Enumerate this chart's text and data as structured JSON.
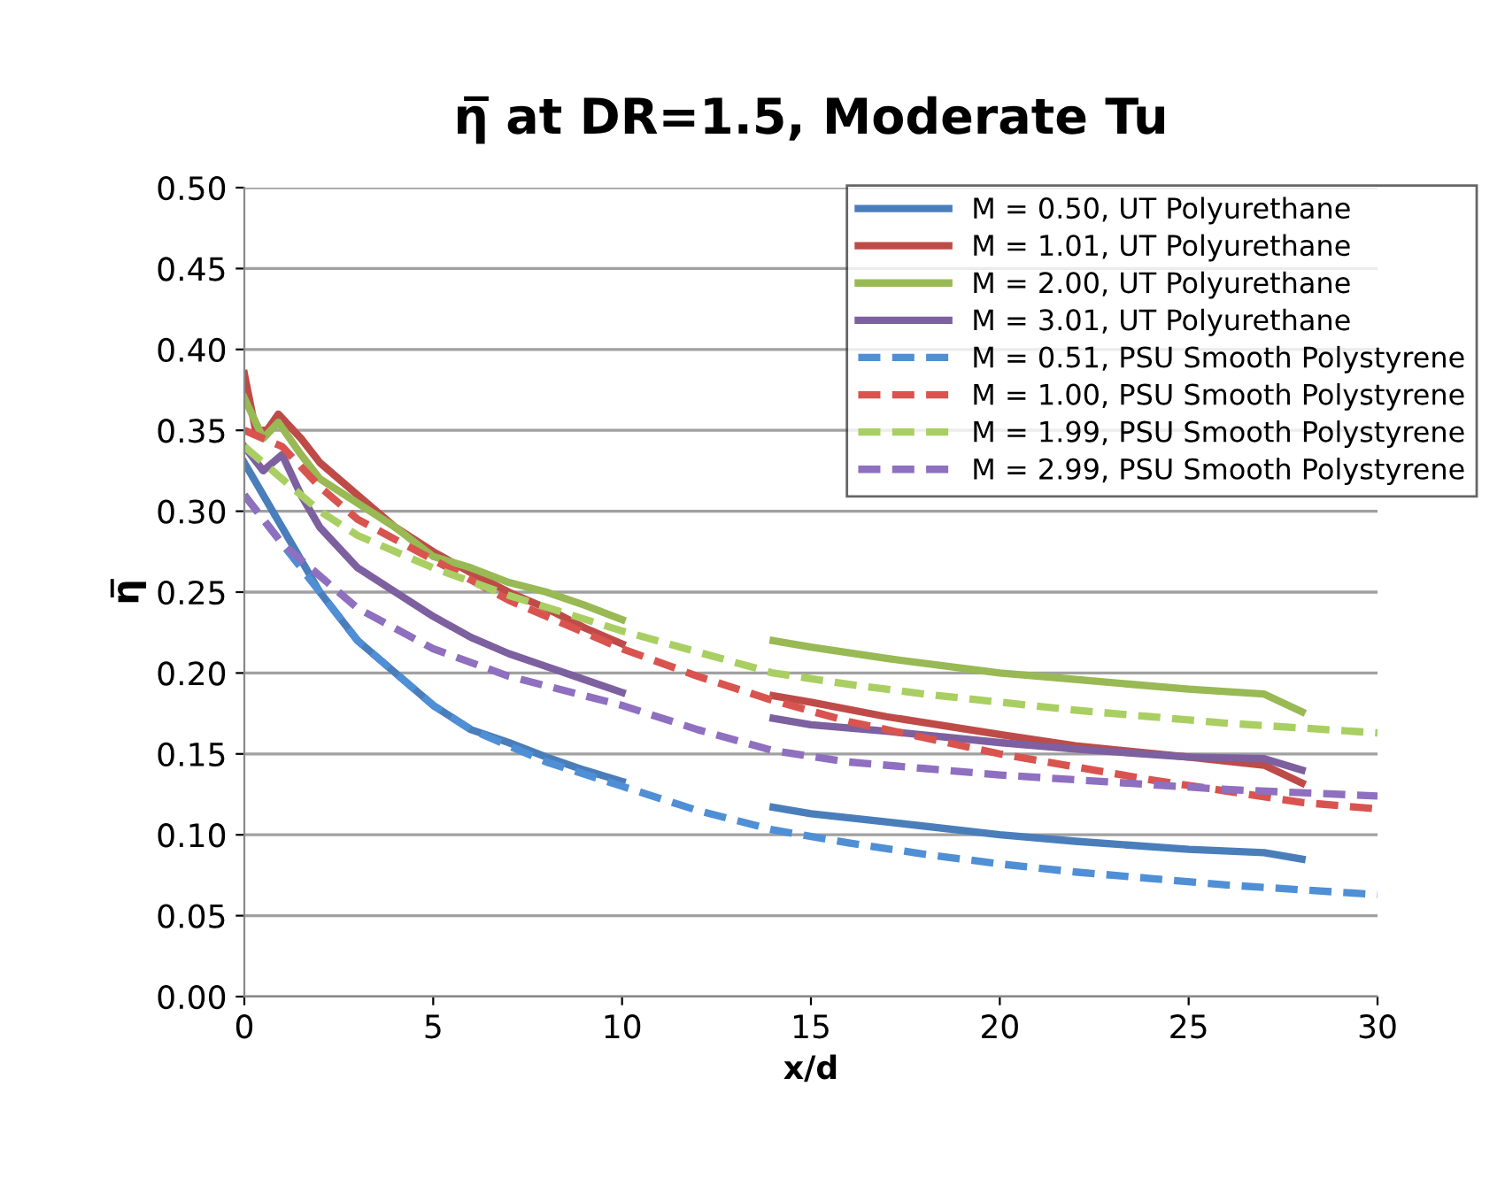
{
  "chart_data": {
    "type": "line",
    "title": "η̅ at DR=1.5, Moderate Tu",
    "xlabel": "x/d",
    "ylabel": "η̅",
    "xlim": [
      0,
      30
    ],
    "xticks": [
      0,
      5,
      10,
      15,
      20,
      25,
      30
    ],
    "ylim": [
      0,
      0.5
    ],
    "yticks": [
      {
        "value": 0,
        "label": "0.00"
      },
      {
        "value": 0.05,
        "label": "0.05"
      },
      {
        "value": 0.1,
        "label": "0.10"
      },
      {
        "value": 0.15,
        "label": "0.15"
      },
      {
        "value": 0.2,
        "label": "0.20"
      },
      {
        "value": 0.25,
        "label": "0.25"
      },
      {
        "value": 0.3,
        "label": "0.30"
      },
      {
        "value": 0.35,
        "label": "0.35"
      },
      {
        "value": 0.4,
        "label": "0.40"
      },
      {
        "value": 0.45,
        "label": "0.45"
      },
      {
        "value": 0.5,
        "label": "0.50"
      }
    ],
    "grid": "y",
    "legend": "top right",
    "marker": "none",
    "series": [
      {
        "name": "M = 0.50, UT Polyurethane",
        "color": "#4a7ebb",
        "line_style": "solid",
        "x": [
          0,
          1,
          2,
          3,
          4,
          5,
          6,
          7,
          8,
          9,
          10,
          12,
          14,
          15,
          17,
          20,
          22,
          25,
          27,
          28
        ],
        "values": [
          0.33,
          0.29,
          0.25,
          0.22,
          0.2,
          0.18,
          0.165,
          0.157,
          0.148,
          0.14,
          0.133,
          null,
          0.117,
          0.113,
          0.108,
          0.1,
          0.096,
          0.091,
          0.089,
          0.085
        ]
      },
      {
        "name": "M = 1.01, UT Polyurethane",
        "color": "#be4b48",
        "line_style": "solid",
        "x": [
          0,
          0.3,
          0.6,
          0.9,
          1.5,
          2,
          3,
          4,
          5,
          6,
          7,
          8,
          9,
          10,
          12,
          14,
          15,
          17,
          20,
          22,
          25,
          27,
          28
        ],
        "values": [
          0.385,
          0.35,
          0.35,
          0.36,
          0.345,
          0.33,
          0.31,
          0.29,
          0.275,
          0.262,
          0.25,
          0.24,
          0.228,
          0.218,
          null,
          0.186,
          0.182,
          0.173,
          0.162,
          0.155,
          0.148,
          0.143,
          0.132
        ]
      },
      {
        "name": "M = 2.00, UT Polyurethane",
        "color": "#98b954",
        "line_style": "solid",
        "x": [
          0,
          0.5,
          0.9,
          1.5,
          2,
          3,
          4,
          5,
          6,
          7,
          8,
          9,
          10,
          12,
          14,
          15,
          17,
          20,
          22,
          25,
          27,
          28
        ],
        "values": [
          0.37,
          0.345,
          0.355,
          0.335,
          0.32,
          0.305,
          0.29,
          0.272,
          0.265,
          0.256,
          0.25,
          0.242,
          0.233,
          null,
          0.22,
          0.216,
          0.209,
          0.2,
          0.196,
          0.19,
          0.187,
          0.176
        ]
      },
      {
        "name": "M = 3.01, UT Polyurethane",
        "color": "#7d60a0",
        "line_style": "solid",
        "x": [
          0,
          0.5,
          1,
          1.5,
          2,
          3,
          4,
          5,
          6,
          7,
          8,
          9,
          10,
          12,
          14,
          15,
          17,
          20,
          22,
          25,
          27,
          28
        ],
        "values": [
          0.34,
          0.325,
          0.335,
          0.31,
          0.29,
          0.265,
          0.25,
          0.235,
          0.222,
          0.212,
          0.204,
          0.196,
          0.188,
          null,
          0.172,
          0.168,
          0.164,
          0.157,
          0.153,
          0.148,
          0.147,
          0.14
        ]
      },
      {
        "name": "M = 0.51, PSU Smooth Polystyrene",
        "color": "#4f8fd6",
        "line_style": "dashed",
        "x": [
          0,
          1,
          2,
          3,
          5,
          6,
          8,
          10,
          12,
          14,
          16,
          18,
          20,
          22,
          24,
          26,
          28,
          30
        ],
        "values": [
          0.31,
          0.28,
          0.25,
          0.22,
          0.18,
          0.165,
          0.145,
          0.13,
          0.115,
          0.103,
          0.095,
          0.088,
          0.082,
          0.077,
          0.073,
          0.069,
          0.066,
          0.063
        ]
      },
      {
        "name": "M = 1.00, PSU Smooth Polystyrene",
        "color": "#d9534f",
        "line_style": "dashed",
        "x": [
          0,
          1,
          2,
          3,
          5,
          7,
          10,
          12,
          14,
          16,
          18,
          20,
          22,
          24,
          26,
          28,
          30
        ],
        "values": [
          0.35,
          0.34,
          0.315,
          0.295,
          0.27,
          0.245,
          0.215,
          0.198,
          0.183,
          0.17,
          0.16,
          0.15,
          0.142,
          0.134,
          0.127,
          0.12,
          0.116
        ]
      },
      {
        "name": "M = 1.99, PSU Smooth Polystyrene",
        "color": "#a9cf62",
        "line_style": "dashed",
        "x": [
          0,
          1,
          2,
          3,
          5,
          7,
          10,
          12,
          14,
          16,
          18,
          20,
          22,
          24,
          26,
          28,
          30
        ],
        "values": [
          0.34,
          0.32,
          0.3,
          0.285,
          0.265,
          0.248,
          0.226,
          0.213,
          0.2,
          0.193,
          0.187,
          0.182,
          0.177,
          0.173,
          0.169,
          0.166,
          0.163
        ]
      },
      {
        "name": "M = 2.99, PSU Smooth Polystyrene",
        "color": "#8f6fbf",
        "line_style": "dashed",
        "x": [
          0,
          1,
          2,
          3,
          5,
          7,
          10,
          12,
          14,
          16,
          18,
          20,
          22,
          24,
          26,
          28,
          30
        ],
        "values": [
          0.31,
          0.28,
          0.26,
          0.24,
          0.215,
          0.198,
          0.18,
          0.165,
          0.152,
          0.145,
          0.141,
          0.137,
          0.134,
          0.131,
          0.128,
          0.126,
          0.124
        ]
      }
    ]
  }
}
